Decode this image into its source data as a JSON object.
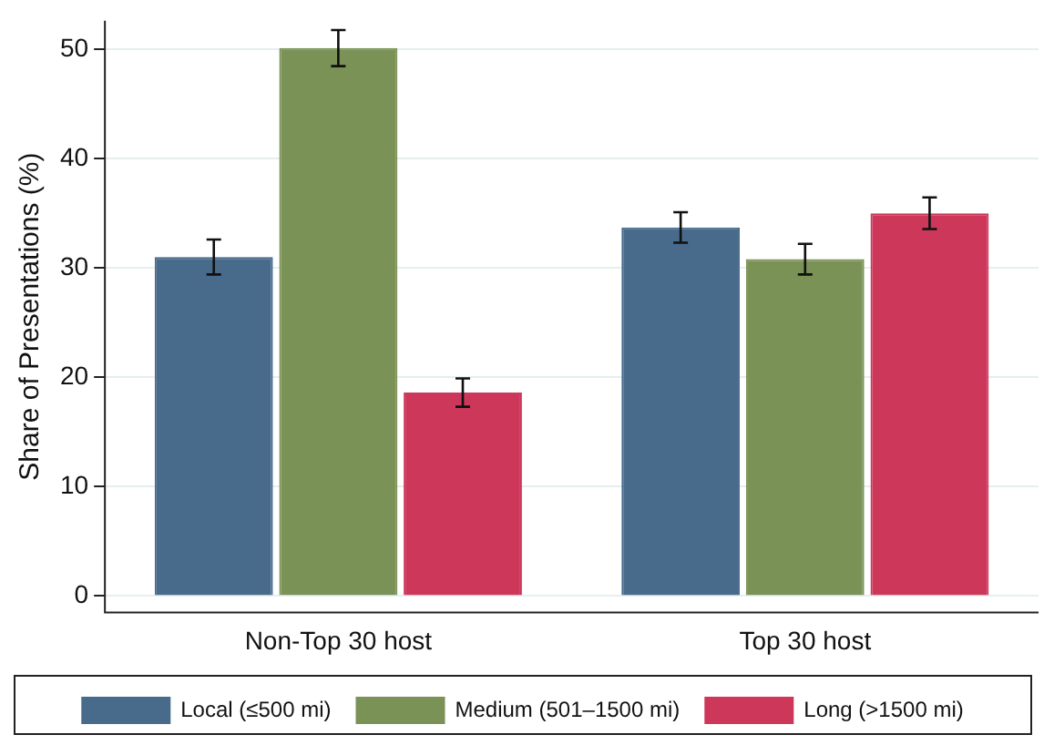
{
  "chart_data": {
    "type": "bar",
    "ylabel": "Share of Presentations (%)",
    "categories": [
      "Non-Top 30 host",
      "Top 30 host"
    ],
    "series": [
      {
        "name": "Local (≤500 mi)",
        "color": "#486b8c",
        "values": [
          31.0,
          33.7
        ],
        "errors": [
          1.6,
          1.4
        ]
      },
      {
        "name": "Medium (501–1500 mi)",
        "color": "#7a9256",
        "values": [
          50.1,
          30.8
        ],
        "errors": [
          1.65,
          1.4
        ]
      },
      {
        "name": "Long (>1500 mi)",
        "color": "#cc375a",
        "values": [
          18.6,
          35.0
        ],
        "errors": [
          1.3,
          1.45
        ]
      }
    ],
    "ylim": [
      -1.5,
      52.6
    ],
    "yticks": [
      0,
      10,
      20,
      30,
      40,
      50
    ],
    "grid": "y",
    "legend": "bottom"
  }
}
